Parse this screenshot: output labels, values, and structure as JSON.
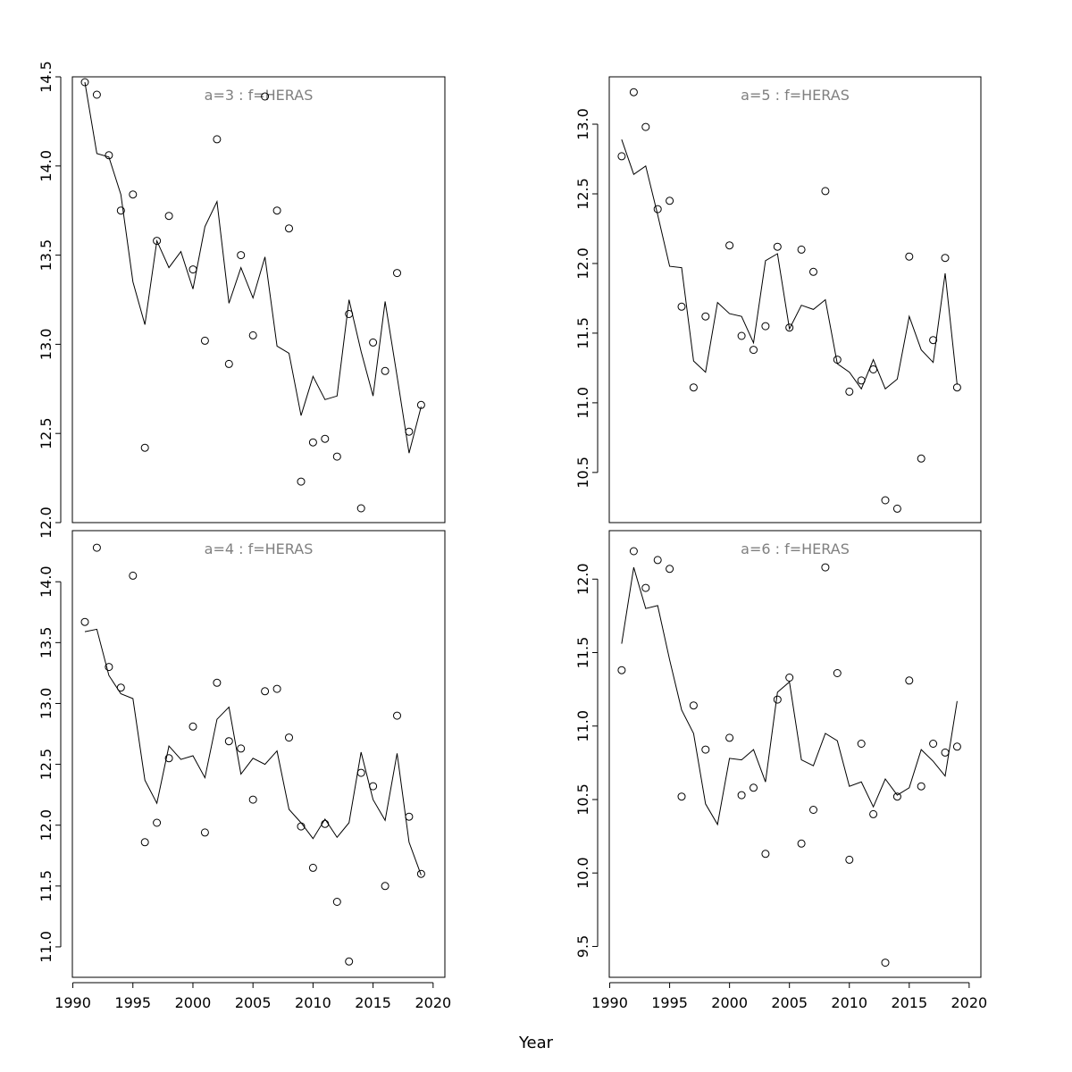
{
  "figure": {
    "xlabel": "Year"
  },
  "chart_data": [
    {
      "type": "scatter",
      "title": "a=3  :  f=HERAS",
      "ylim": [
        12.0,
        14.5
      ],
      "yticks": [
        "12.0",
        "12.5",
        "13.0",
        "13.5",
        "14.0",
        "14.5"
      ],
      "show_xaxis": false,
      "points": {
        "x": [
          1991,
          1992,
          1993,
          1994,
          1995,
          1996,
          1997,
          1998,
          2000,
          2001,
          2002,
          2003,
          2004,
          2005,
          2006,
          2007,
          2008,
          2009,
          2010,
          2011,
          2012,
          2013,
          2014,
          2015,
          2016,
          2017,
          2018,
          2019
        ],
        "y": [
          14.47,
          14.4,
          14.06,
          13.75,
          13.84,
          12.42,
          13.58,
          13.72,
          13.42,
          13.02,
          14.15,
          12.89,
          13.5,
          13.05,
          14.39,
          13.75,
          13.65,
          12.23,
          12.45,
          12.47,
          12.37,
          13.17,
          12.08,
          13.01,
          12.85,
          13.4,
          12.51,
          12.66
        ]
      },
      "line": {
        "x": [
          1991,
          1992,
          1993,
          1994,
          1995,
          1996,
          1997,
          1998,
          1999,
          2000,
          2001,
          2002,
          2003,
          2004,
          2005,
          2006,
          2007,
          2008,
          2009,
          2010,
          2011,
          2012,
          2013,
          2014,
          2015,
          2016,
          2017,
          2018,
          2019
        ],
        "y": [
          14.47,
          14.07,
          14.05,
          13.84,
          13.35,
          13.11,
          13.58,
          13.43,
          13.52,
          13.31,
          13.66,
          13.8,
          13.23,
          13.43,
          13.26,
          13.49,
          12.99,
          12.95,
          12.6,
          12.82,
          12.69,
          12.71,
          13.25,
          12.96,
          12.71,
          13.24,
          12.82,
          12.39,
          12.65
        ]
      }
    },
    {
      "type": "scatter",
      "title": "a=5  :  f=HERAS",
      "ylim": [
        10.14,
        13.34
      ],
      "yticks": [
        "10.5",
        "11.0",
        "11.5",
        "12.0",
        "12.5",
        "13.0"
      ],
      "show_xaxis": false,
      "points": {
        "x": [
          1991,
          1992,
          1993,
          1994,
          1995,
          1996,
          1997,
          1998,
          2000,
          2001,
          2002,
          2003,
          2004,
          2005,
          2006,
          2007,
          2008,
          2009,
          2010,
          2011,
          2012,
          2013,
          2014,
          2015,
          2016,
          2017,
          2018,
          2019
        ],
        "y": [
          12.77,
          13.23,
          12.98,
          12.39,
          12.45,
          11.69,
          11.11,
          11.62,
          12.13,
          11.48,
          11.38,
          11.55,
          12.12,
          11.54,
          12.1,
          11.94,
          12.52,
          11.31,
          11.08,
          11.16,
          11.24,
          10.3,
          10.24,
          12.05,
          10.6,
          11.45,
          12.04,
          11.11
        ]
      },
      "line": {
        "x": [
          1991,
          1992,
          1993,
          1994,
          1995,
          1996,
          1997,
          1998,
          1999,
          2000,
          2001,
          2002,
          2003,
          2004,
          2005,
          2006,
          2007,
          2008,
          2009,
          2010,
          2011,
          2012,
          2013,
          2014,
          2015,
          2016,
          2017,
          2018,
          2019
        ],
        "y": [
          12.89,
          12.64,
          12.7,
          12.35,
          11.98,
          11.97,
          11.3,
          11.22,
          11.72,
          11.64,
          11.62,
          11.43,
          12.02,
          12.07,
          11.53,
          11.7,
          11.67,
          11.74,
          11.28,
          11.22,
          11.1,
          11.31,
          11.1,
          11.17,
          11.62,
          11.38,
          11.29,
          11.93,
          11.13
        ]
      }
    },
    {
      "type": "scatter",
      "title": "a=4  :  f=HERAS",
      "ylim": [
        10.75,
        14.42
      ],
      "yticks": [
        "11.0",
        "11.5",
        "12.0",
        "12.5",
        "13.0",
        "13.5",
        "14.0"
      ],
      "show_xaxis": true,
      "xticks": [
        "1990",
        "1995",
        "2000",
        "2005",
        "2010",
        "2015",
        "2020"
      ],
      "points": {
        "x": [
          1991,
          1992,
          1993,
          1994,
          1995,
          1996,
          1997,
          1998,
          2000,
          2001,
          2002,
          2003,
          2004,
          2005,
          2006,
          2007,
          2008,
          2009,
          2010,
          2011,
          2012,
          2013,
          2014,
          2015,
          2016,
          2017,
          2018,
          2019
        ],
        "y": [
          13.67,
          14.28,
          13.3,
          13.13,
          14.05,
          11.86,
          12.02,
          12.55,
          12.81,
          11.94,
          13.17,
          12.69,
          12.63,
          12.21,
          13.1,
          13.12,
          12.72,
          11.99,
          11.65,
          12.01,
          11.37,
          10.88,
          12.43,
          12.32,
          11.5,
          12.9,
          12.07,
          11.6
        ]
      },
      "line": {
        "x": [
          1991,
          1992,
          1993,
          1994,
          1995,
          1996,
          1997,
          1998,
          1999,
          2000,
          2001,
          2002,
          2003,
          2004,
          2005,
          2006,
          2007,
          2008,
          2009,
          2010,
          2011,
          2012,
          2013,
          2014,
          2015,
          2016,
          2017,
          2018,
          2019
        ],
        "y": [
          13.59,
          13.61,
          13.23,
          13.08,
          13.04,
          12.37,
          12.18,
          12.65,
          12.54,
          12.57,
          12.39,
          12.87,
          12.97,
          12.42,
          12.55,
          12.5,
          12.61,
          12.13,
          12.02,
          11.89,
          12.05,
          11.9,
          12.02,
          12.6,
          12.21,
          12.04,
          12.59,
          11.86,
          11.59
        ]
      }
    },
    {
      "type": "scatter",
      "title": "a=6  :  f=HERAS",
      "ylim": [
        9.29,
        12.33
      ],
      "yticks": [
        "9.5",
        "10.0",
        "10.5",
        "11.0",
        "11.5",
        "12.0"
      ],
      "show_xaxis": true,
      "xticks": [
        "1990",
        "1995",
        "2000",
        "2005",
        "2010",
        "2015",
        "2020"
      ],
      "points": {
        "x": [
          1991,
          1992,
          1993,
          1994,
          1995,
          1996,
          1997,
          1998,
          2000,
          2001,
          2002,
          2003,
          2004,
          2005,
          2006,
          2007,
          2008,
          2009,
          2010,
          2011,
          2012,
          2013,
          2014,
          2015,
          2016,
          2017,
          2018,
          2019
        ],
        "y": [
          11.38,
          12.19,
          11.94,
          12.13,
          12.07,
          10.52,
          11.14,
          10.84,
          10.92,
          10.53,
          10.58,
          10.13,
          11.18,
          11.33,
          10.2,
          10.43,
          12.08,
          11.36,
          10.09,
          10.88,
          10.4,
          9.39,
          10.52,
          11.31,
          10.59,
          10.88,
          10.82,
          10.86
        ]
      },
      "line": {
        "x": [
          1991,
          1992,
          1993,
          1994,
          1995,
          1996,
          1997,
          1998,
          1999,
          2000,
          2001,
          2002,
          2003,
          2004,
          2005,
          2006,
          2007,
          2008,
          2009,
          2010,
          2011,
          2012,
          2013,
          2014,
          2015,
          2016,
          2017,
          2018,
          2019
        ],
        "y": [
          11.56,
          12.08,
          11.8,
          11.82,
          11.45,
          11.11,
          10.95,
          10.47,
          10.33,
          10.78,
          10.77,
          10.84,
          10.62,
          11.23,
          11.3,
          10.77,
          10.73,
          10.95,
          10.9,
          10.59,
          10.62,
          10.45,
          10.64,
          10.53,
          10.58,
          10.84,
          10.76,
          10.66,
          11.17
        ]
      }
    }
  ]
}
